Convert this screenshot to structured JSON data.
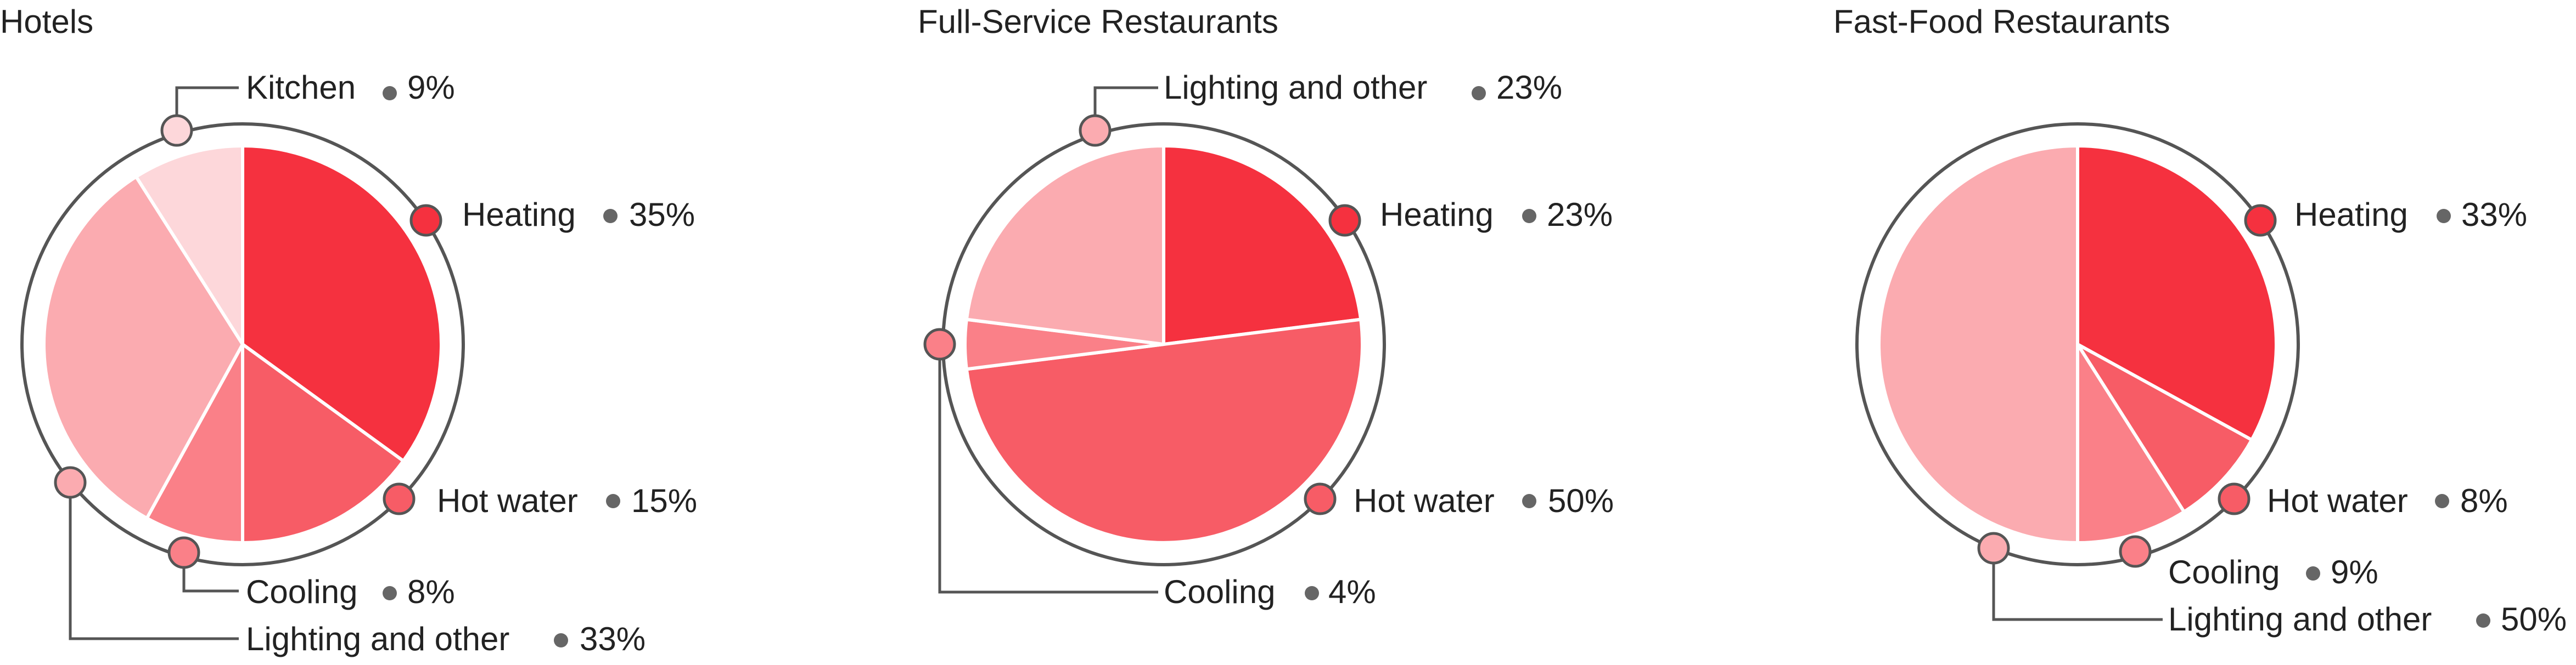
{
  "colors": {
    "heating": "#f5313f",
    "hot_water": "#f75c66",
    "cooling": "#fa8088",
    "lighting_and_other": "#fbabb0",
    "kitchen": "#fdd7da",
    "ring": "#555555",
    "connector": "#555555",
    "bullet": "#666666",
    "text": "#222222"
  },
  "chart_data": [
    {
      "type": "pie",
      "title": "Hotels",
      "slices": [
        {
          "label": "Heating",
          "value": 35,
          "value_label": "35%",
          "color_key": "heating"
        },
        {
          "label": "Hot water",
          "value": 15,
          "value_label": "15%",
          "color_key": "hot_water"
        },
        {
          "label": "Cooling",
          "value": 8,
          "value_label": "8%",
          "color_key": "cooling"
        },
        {
          "label": "Lighting and other",
          "value": 33,
          "value_label": "33%",
          "color_key": "lighting_and_other"
        },
        {
          "label": "Kitchen",
          "value": 9,
          "value_label": "9%",
          "color_key": "kitchen"
        }
      ]
    },
    {
      "type": "pie",
      "title": "Full-Service Restaurants",
      "slices": [
        {
          "label": "Heating",
          "value": 23,
          "value_label": "23%",
          "color_key": "heating"
        },
        {
          "label": "Hot water",
          "value": 50,
          "value_label": "50%",
          "color_key": "hot_water"
        },
        {
          "label": "Cooling",
          "value": 4,
          "value_label": "4%",
          "color_key": "cooling"
        },
        {
          "label": "Lighting and other",
          "value": 23,
          "value_label": "23%",
          "color_key": "lighting_and_other"
        }
      ]
    },
    {
      "type": "pie",
      "title": "Fast-Food Restaurants",
      "slices": [
        {
          "label": "Heating",
          "value": 33,
          "value_label": "33%",
          "color_key": "heating"
        },
        {
          "label": "Hot water",
          "value": 8,
          "value_label": "8%",
          "color_key": "hot_water"
        },
        {
          "label": "Cooling",
          "value": 9,
          "value_label": "9%",
          "color_key": "cooling"
        },
        {
          "label": "Lighting and other",
          "value": 50,
          "value_label": "50%",
          "color_key": "lighting_and_other"
        }
      ]
    }
  ]
}
